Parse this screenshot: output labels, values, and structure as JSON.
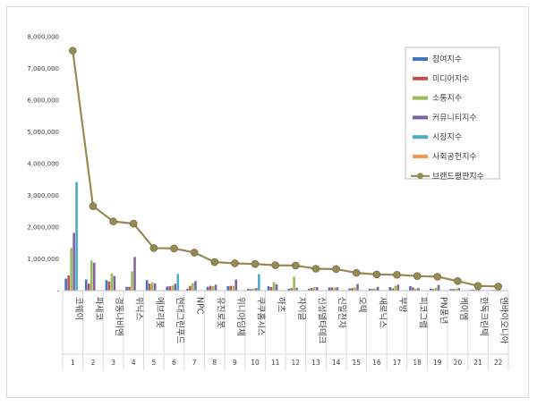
{
  "chart_data": {
    "type": "bar",
    "title": "",
    "xlabel": "",
    "ylabel": "",
    "ylim": [
      0,
      8000000
    ],
    "yticks": [
      0,
      1000000,
      2000000,
      3000000,
      4000000,
      5000000,
      6000000,
      7000000,
      8000000
    ],
    "ytick_labels": [
      "-",
      "1,000,000",
      "2,000,000",
      "3,000,000",
      "4,000,000",
      "5,000,000",
      "6,000,000",
      "7,000,000",
      "8,000,000"
    ],
    "grid": false,
    "legend_position": "top-right",
    "indices": [
      "1",
      "2",
      "3",
      "4",
      "5",
      "6",
      "7",
      "8",
      "9",
      "10",
      "11",
      "12",
      "13",
      "14",
      "15",
      "16",
      "17",
      "18",
      "19",
      "20",
      "21",
      "22"
    ],
    "categories": [
      "코웨이",
      "파세코",
      "경동나비엔",
      "위닉스",
      "에브리봇",
      "현대그린푸드",
      "NPC",
      "유진로봇",
      "위니아딤채",
      "쿠쿠홈시스",
      "하츠",
      "자이글",
      "신성델타테크",
      "신일전자",
      "오텍",
      "새로닉스",
      "부방",
      "피코그램",
      "PN풍년",
      "케이엠",
      "한독크린텍",
      "엔바이오니아"
    ],
    "series": [
      {
        "name": "참여지수",
        "color": "#4472c4",
        "values": [
          380000,
          350000,
          330000,
          120000,
          330000,
          130000,
          60000,
          120000,
          140000,
          60000,
          140000,
          60000,
          60000,
          100000,
          70000,
          60000,
          110000,
          140000,
          60000,
          50000,
          30000,
          20000
        ]
      },
      {
        "name": "미디어지수",
        "color": "#c0504d",
        "values": [
          480000,
          220000,
          290000,
          120000,
          220000,
          140000,
          150000,
          150000,
          150000,
          50000,
          110000,
          80000,
          80000,
          100000,
          80000,
          50000,
          70000,
          100000,
          50000,
          50000,
          30000,
          20000
        ]
      },
      {
        "name": "소통지수",
        "color": "#9bbb59",
        "values": [
          1340000,
          950000,
          540000,
          610000,
          270000,
          160000,
          240000,
          140000,
          150000,
          70000,
          270000,
          440000,
          110000,
          90000,
          100000,
          70000,
          150000,
          60000,
          90000,
          60000,
          40000,
          30000
        ]
      },
      {
        "name": "커뮤니티지수",
        "color": "#8064a2",
        "values": [
          1820000,
          880000,
          460000,
          1060000,
          230000,
          220000,
          300000,
          190000,
          350000,
          80000,
          200000,
          90000,
          110000,
          110000,
          210000,
          120000,
          190000,
          80000,
          180000,
          80000,
          40000,
          40000
        ]
      },
      {
        "name": "시장지수",
        "color": "#4bacc6",
        "values": [
          3420000,
          0,
          0,
          0,
          0,
          530000,
          0,
          0,
          0,
          520000,
          0,
          0,
          0,
          0,
          0,
          0,
          0,
          0,
          0,
          0,
          0,
          0
        ]
      },
      {
        "name": "사회공헌지수",
        "color": "#f79646",
        "values": [
          0,
          0,
          0,
          0,
          0,
          0,
          0,
          0,
          0,
          0,
          0,
          0,
          0,
          0,
          0,
          0,
          0,
          0,
          0,
          0,
          0,
          0
        ]
      },
      {
        "name": "브랜드평판지수",
        "color": "#948a54",
        "type": "line",
        "values": [
          7560000,
          2660000,
          2180000,
          2110000,
          1340000,
          1330000,
          1200000,
          900000,
          860000,
          840000,
          800000,
          790000,
          690000,
          680000,
          560000,
          510000,
          500000,
          460000,
          440000,
          300000,
          150000,
          130000
        ]
      }
    ]
  }
}
